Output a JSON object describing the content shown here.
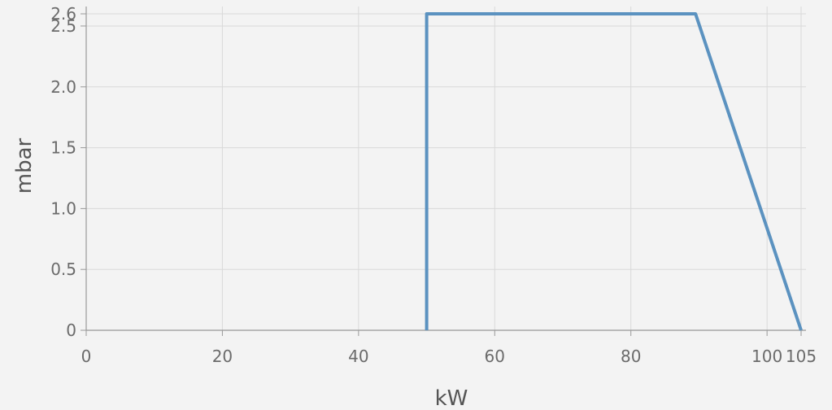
{
  "chart_data": {
    "type": "line",
    "xlabel": "kW",
    "ylabel": "mbar",
    "xlim": [
      0,
      105
    ],
    "ylim": [
      0,
      2.6
    ],
    "x_ticks": [
      0,
      20,
      40,
      60,
      80,
      100,
      105
    ],
    "y_ticks": [
      0,
      0.5,
      1.0,
      1.5,
      2.0,
      2.5,
      2.6
    ],
    "x_tick_labels": [
      "0",
      "20",
      "40",
      "60",
      "80",
      "100",
      "105"
    ],
    "y_tick_labels": [
      "0",
      "0.5",
      "1.0",
      "1.5",
      "2.0",
      "2.5",
      "2.6"
    ],
    "grid": true,
    "series": [
      {
        "color": "#5b92c0",
        "points": [
          [
            50,
            0
          ],
          [
            50,
            2.6
          ],
          [
            89.5,
            2.6
          ],
          [
            105,
            0
          ]
        ]
      }
    ]
  }
}
